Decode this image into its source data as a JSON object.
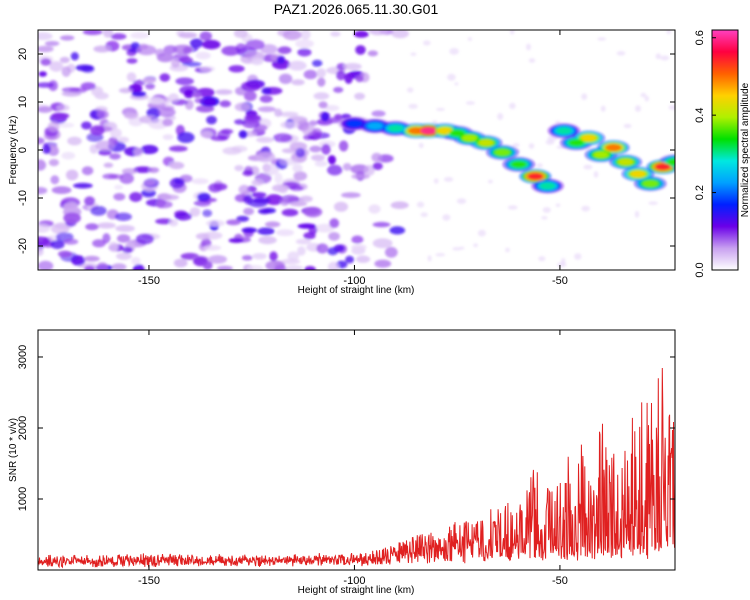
{
  "chart_data": [
    {
      "type": "heatmap",
      "title": "PAZ1.2026.065.11.30.G01",
      "xlabel": "Height of straight line (km)",
      "ylabel": "Frequency (Hz)",
      "xlim": [
        -177,
        -22
      ],
      "ylim": [
        -25,
        25
      ],
      "x_ticks": [
        -150,
        -100,
        -50
      ],
      "y_ticks": [
        -20,
        -10,
        0,
        10,
        20
      ],
      "x_tick_labels": [
        "-150",
        "-100",
        "-50"
      ],
      "y_tick_labels": [
        "-20",
        "-10",
        "0",
        "10",
        "20"
      ],
      "grid": false,
      "colorbar": {
        "label": "Normalized spectral amplitude",
        "range": [
          0.0,
          0.62
        ],
        "ticks": [
          0.0,
          0.2,
          0.4,
          0.6
        ],
        "tick_labels": [
          "0.0",
          "0.2",
          "0.4",
          "0.6"
        ],
        "colormap": [
          "#ffffff",
          "#c8a0f0",
          "#6a00e8",
          "#0020ff",
          "#00a0ff",
          "#00e8e0",
          "#00e000",
          "#b0f000",
          "#ffd000",
          "#ff6000",
          "#ff0040",
          "#ff40c0"
        ]
      },
      "noise_region": {
        "x_range": [
          -177,
          -88
        ],
        "frequency_range": [
          -25,
          25
        ],
        "amplitude_range": [
          0.02,
          0.14
        ]
      },
      "signal_track": [
        {
          "x": -100,
          "frequency": 5.5,
          "amplitude": 0.18
        },
        {
          "x": -95,
          "frequency": 5.0,
          "amplitude": 0.24
        },
        {
          "x": -90,
          "frequency": 4.5,
          "amplitude": 0.3
        },
        {
          "x": -85,
          "frequency": 4.0,
          "amplitude": 0.5
        },
        {
          "x": -82,
          "frequency": 4.0,
          "amplitude": 0.6
        },
        {
          "x": -78,
          "frequency": 4.0,
          "amplitude": 0.45
        },
        {
          "x": -75,
          "frequency": 3.5,
          "amplitude": 0.35
        },
        {
          "x": -72,
          "frequency": 2.5,
          "amplitude": 0.4
        },
        {
          "x": -68,
          "frequency": 1.5,
          "amplitude": 0.42
        },
        {
          "x": -64,
          "frequency": -0.5,
          "amplitude": 0.38
        },
        {
          "x": -60,
          "frequency": -3.0,
          "amplitude": 0.35
        },
        {
          "x": -56,
          "frequency": -5.5,
          "amplitude": 0.55
        },
        {
          "x": -53,
          "frequency": -7.5,
          "amplitude": 0.3
        },
        {
          "x": -49,
          "frequency": 4.0,
          "amplitude": 0.3
        },
        {
          "x": -46,
          "frequency": 1.5,
          "amplitude": 0.35
        },
        {
          "x": -43,
          "frequency": 2.5,
          "amplitude": 0.45
        },
        {
          "x": -40,
          "frequency": -1.0,
          "amplitude": 0.4
        },
        {
          "x": -37,
          "frequency": 0.5,
          "amplitude": 0.5
        },
        {
          "x": -34,
          "frequency": -2.5,
          "amplitude": 0.42
        },
        {
          "x": -31,
          "frequency": -5.0,
          "amplitude": 0.45
        },
        {
          "x": -28,
          "frequency": -7.0,
          "amplitude": 0.38
        },
        {
          "x": -25,
          "frequency": -3.5,
          "amplitude": 0.55
        },
        {
          "x": -22,
          "frequency": -2.5,
          "amplitude": 0.35
        }
      ]
    },
    {
      "type": "line",
      "title": "",
      "xlabel": "Height of straight line (km)",
      "ylabel": "SNR (10 * v/v)",
      "xlim": [
        -177,
        -22
      ],
      "ylim": [
        0,
        3380
      ],
      "x_ticks": [
        -150,
        -100,
        -50
      ],
      "y_ticks": [
        1000,
        2000,
        3000
      ],
      "x_tick_labels": [
        "-150",
        "-100",
        "-50"
      ],
      "y_tick_labels": [
        "1000",
        "2000",
        "3000"
      ],
      "grid": false,
      "series": [
        {
          "name": "SNR",
          "color": "#e02020",
          "envelope": [
            {
              "x": -177,
              "base": 100,
              "amp": 120
            },
            {
              "x": -150,
              "base": 100,
              "amp": 140
            },
            {
              "x": -120,
              "base": 110,
              "amp": 120
            },
            {
              "x": -100,
              "base": 120,
              "amp": 130
            },
            {
              "x": -92,
              "base": 160,
              "amp": 200
            },
            {
              "x": -85,
              "base": 200,
              "amp": 350
            },
            {
              "x": -78,
              "base": 230,
              "amp": 420
            },
            {
              "x": -70,
              "base": 260,
              "amp": 600
            },
            {
              "x": -62,
              "base": 280,
              "amp": 800
            },
            {
              "x": -57,
              "base": 300,
              "amp": 1400
            },
            {
              "x": -52,
              "base": 300,
              "amp": 900
            },
            {
              "x": -47,
              "base": 320,
              "amp": 1500
            },
            {
              "x": -42,
              "base": 330,
              "amp": 1900
            },
            {
              "x": -37,
              "base": 340,
              "amp": 1700
            },
            {
              "x": -32,
              "base": 350,
              "amp": 2100
            },
            {
              "x": -28,
              "base": 380,
              "amp": 2600
            },
            {
              "x": -25,
              "base": 400,
              "amp": 3300
            },
            {
              "x": -22,
              "base": 380,
              "amp": 1700
            }
          ]
        }
      ]
    }
  ]
}
